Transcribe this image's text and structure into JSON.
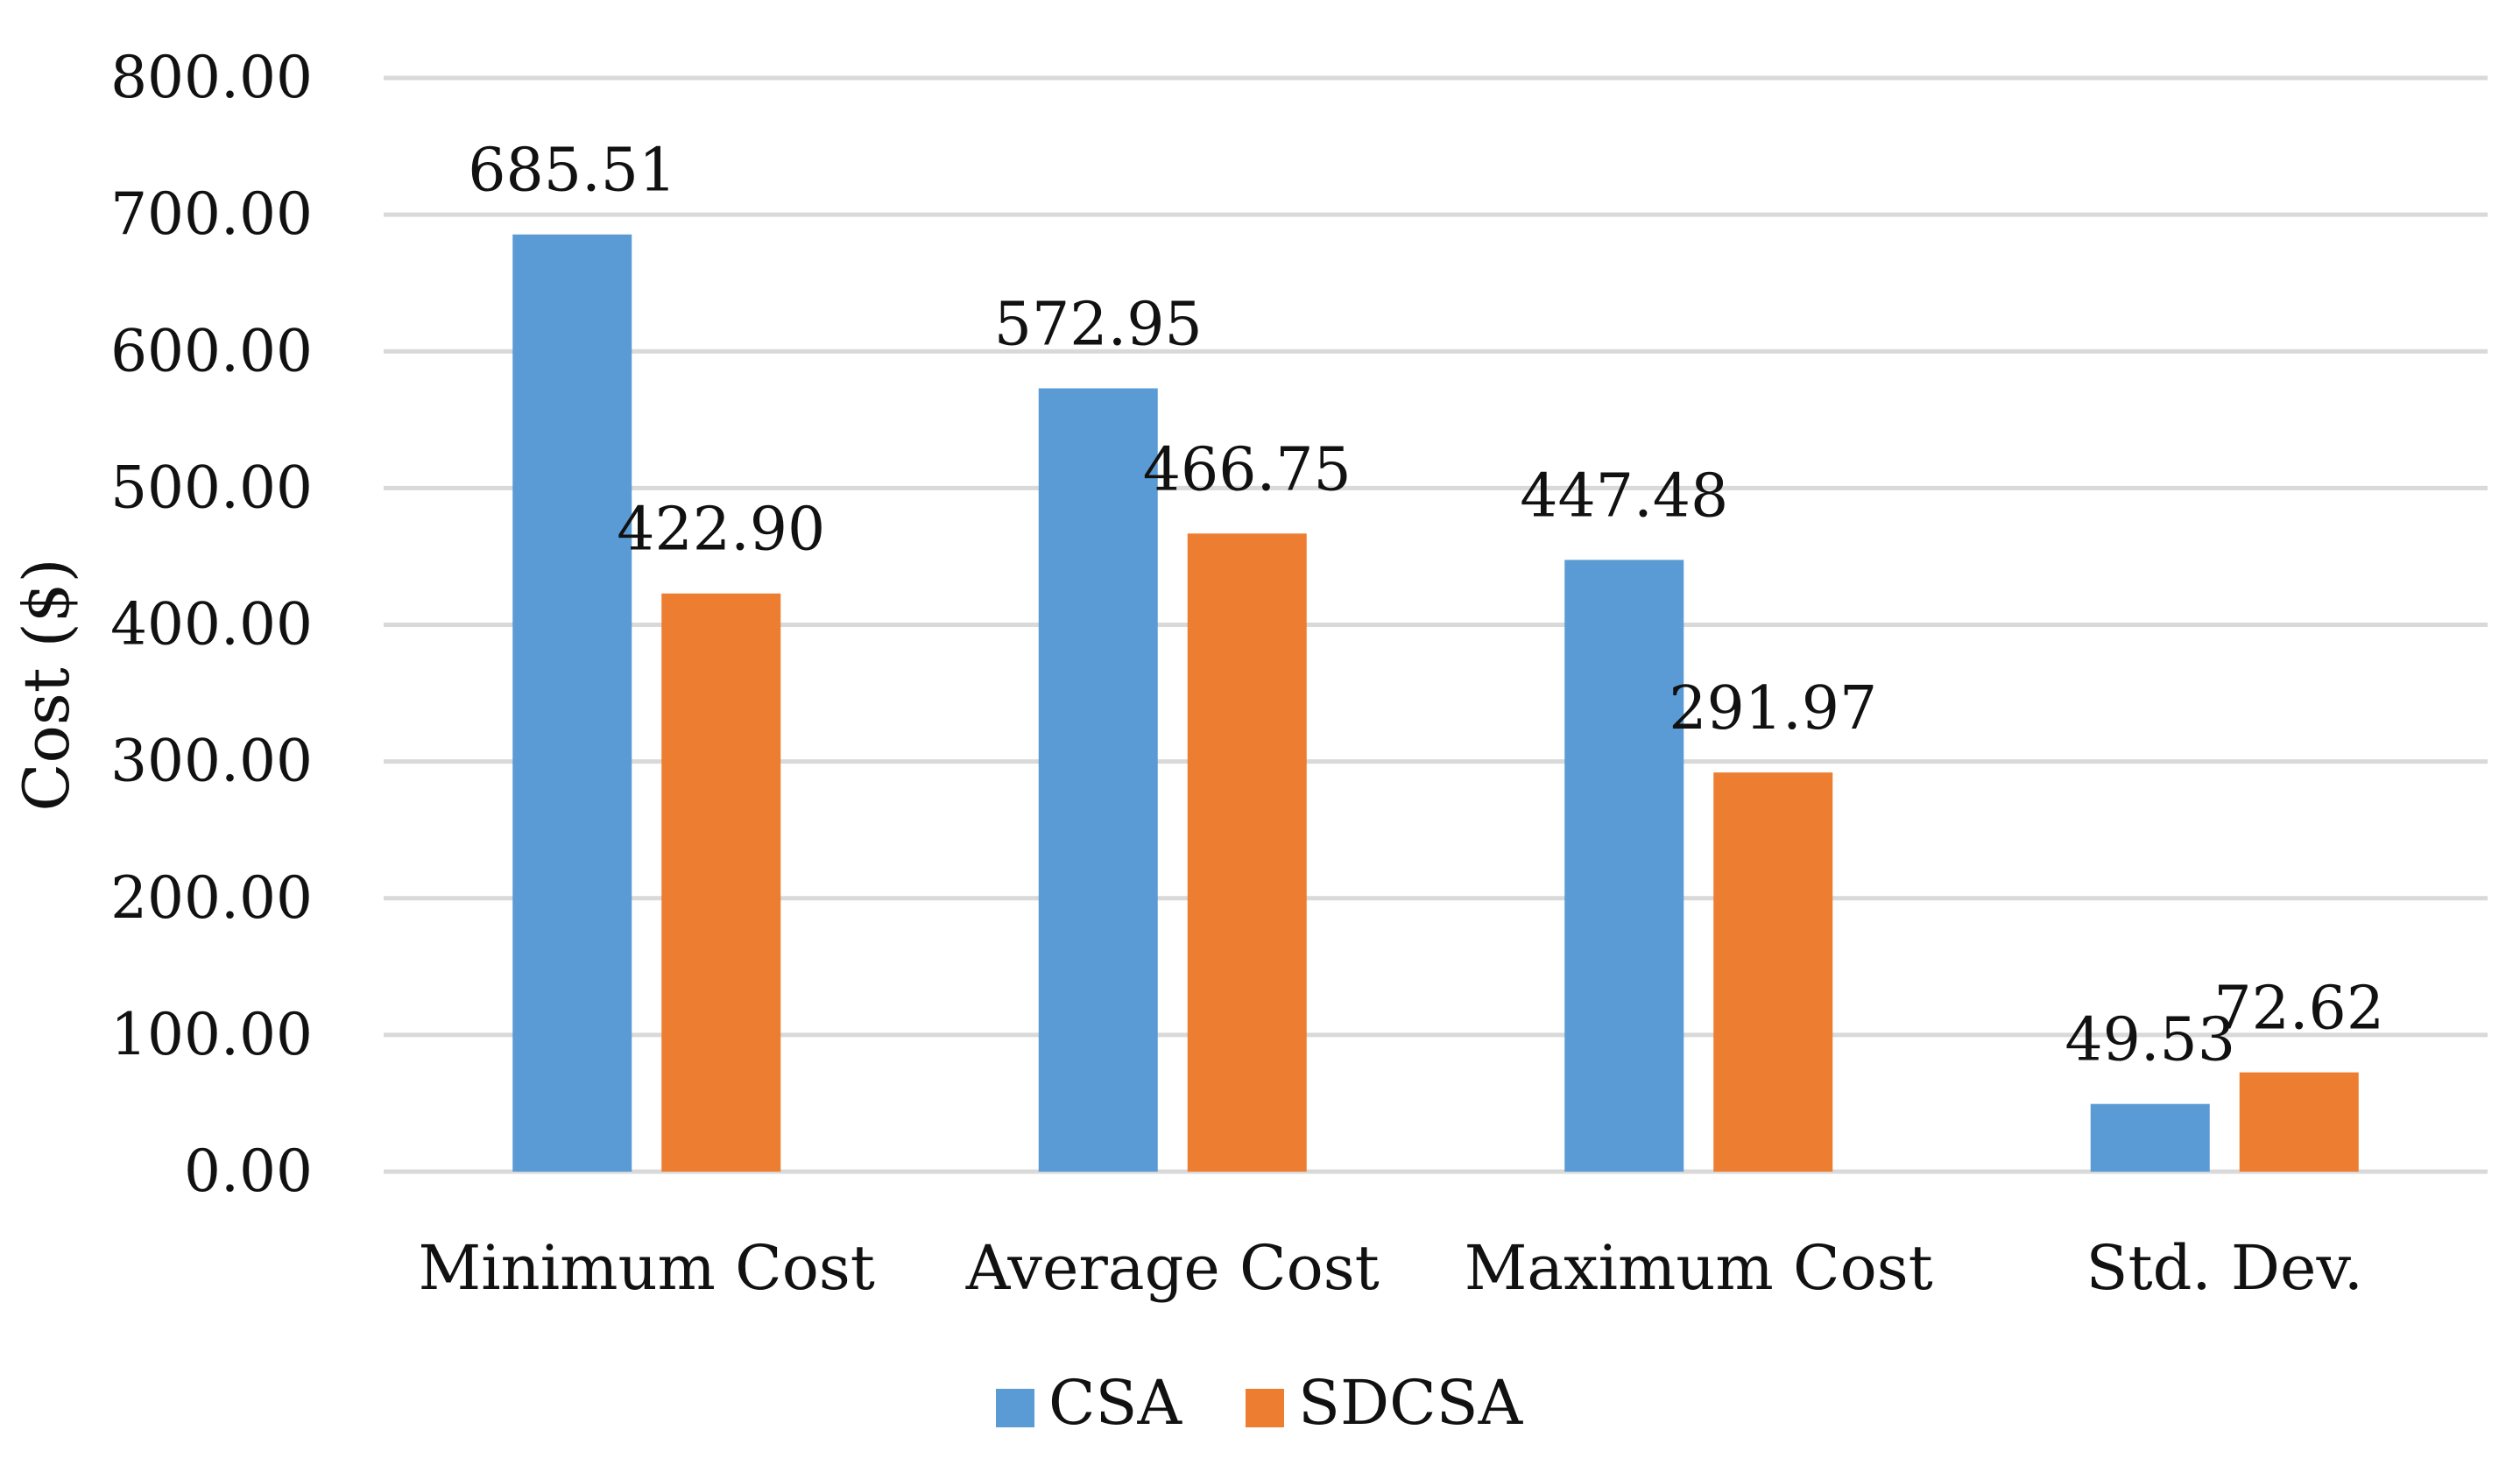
{
  "chart_data": {
    "type": "bar",
    "title": "",
    "xlabel": "",
    "ylabel": "Cost ($)",
    "ylim": [
      0,
      800
    ],
    "yticks": [
      "0.00",
      "100.00",
      "200.00",
      "300.00",
      "400.00",
      "500.00",
      "600.00",
      "700.00",
      "800.00"
    ],
    "grid": true,
    "legend_position": "bottom",
    "categories": [
      "Minimum Cost",
      "Average Cost",
      "Maximum Cost",
      "Std. Dev."
    ],
    "series": [
      {
        "name": "CSA",
        "color": "#5b9bd5",
        "values": [
          685.51,
          572.95,
          447.48,
          49.53
        ],
        "labels": [
          "685.51",
          "572.95",
          "447.48",
          "49.53"
        ]
      },
      {
        "name": "SDCSA",
        "color": "#ed7d31",
        "values": [
          422.9,
          466.75,
          291.97,
          72.62
        ],
        "labels": [
          "422.90",
          "466.75",
          "291.97",
          "72.62"
        ]
      }
    ]
  }
}
